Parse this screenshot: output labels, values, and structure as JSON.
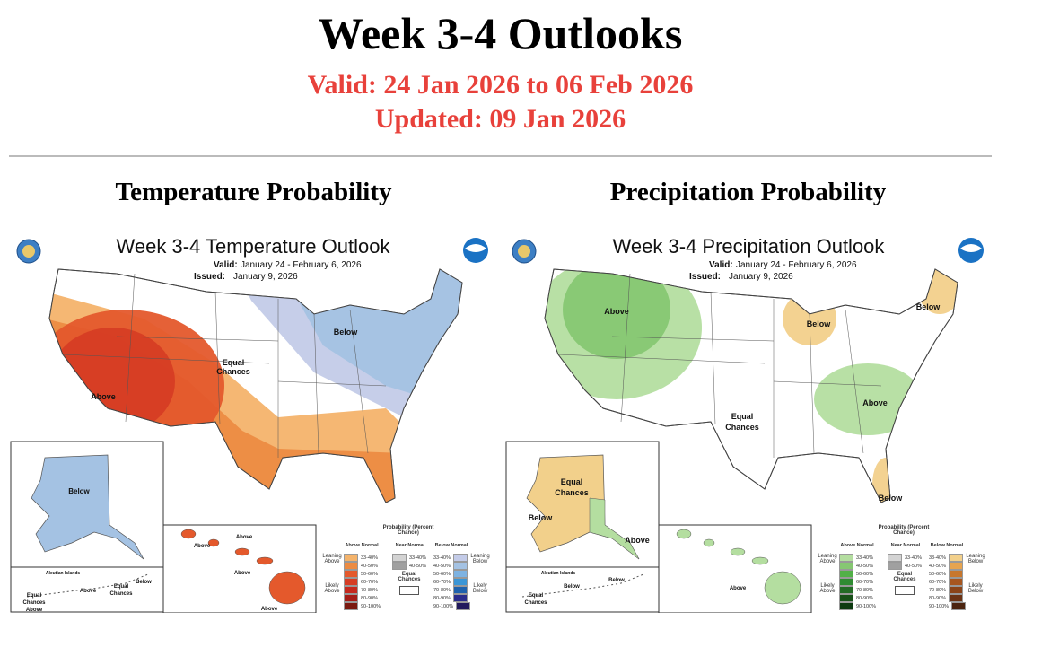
{
  "page": {
    "title": "Week 3-4 Outlooks",
    "valid": "Valid: 24 Jan 2026 to 06 Feb 2026",
    "updated": "Updated: 09 Jan 2026"
  },
  "temperature": {
    "heading": "Temperature Probability",
    "map_title": "Week 3-4 Temperature Outlook",
    "valid_label": "Valid:",
    "valid_value": "January 24 - February 6, 2026",
    "issued_label": "Issued:",
    "issued_value": "January 9, 2026",
    "labels": {
      "above": "Above",
      "below": "Below",
      "equal1": "Equal",
      "equal2": "Chances",
      "ak_below": "Below",
      "aleutian": "Aleutian Islands",
      "al_equal1": "Equal",
      "al_equal2": "Chances",
      "al_above": "Above",
      "al_above2": "Above",
      "al_equal3": "Equal",
      "al_equal4": "Chances",
      "al_below": "Below",
      "hi_above1": "Above",
      "hi_above2": "Above",
      "hi_above3": "Above",
      "hi_above4": "Above"
    },
    "legend": {
      "title": "Probability (Percent Chance)",
      "col1": "Above Normal",
      "col2": "Near Normal",
      "col3": "Below Normal",
      "leaning_left": "Leaning Above",
      "likely_left": "Likely Above",
      "leaning_right": "Leaning Below",
      "likely_right": "Likely Below",
      "equal": "Equal Chances",
      "ranges": [
        "33-40%",
        "40-50%",
        "50-60%",
        "60-70%",
        "70-80%",
        "80-90%",
        "90-100%"
      ],
      "near_ranges": [
        "33-40%",
        "40-50%"
      ],
      "col1_colors": [
        "#f4b36b",
        "#ec8b42",
        "#e4592c",
        "#d63d24",
        "#c5291e",
        "#a51d17",
        "#7a1a10"
      ],
      "near_colors": [
        "#d3d3d3",
        "#a0a0a0"
      ],
      "col3_colors": [
        "#c3cbe8",
        "#a4c2e3",
        "#7eb3e2",
        "#3b96d6",
        "#1f62ad",
        "#2a2d8c",
        "#221a5c"
      ]
    }
  },
  "precipitation": {
    "heading": "Precipitation Probability",
    "map_title": "Week 3-4 Precipitation Outlook",
    "valid_label": "Valid:",
    "valid_value": "January 24 - February 6, 2026",
    "issued_label": "Issued:",
    "issued_value": "January 9, 2026",
    "labels": {
      "above": "Above",
      "below": "Below",
      "equal1": "Equal",
      "equal2": "Chances",
      "above_se": "Above",
      "below_ne": "Below",
      "below_fl": "Below",
      "ak_equal1": "Equal",
      "ak_equal2": "Chances",
      "ak_below": "Below",
      "ak_above": "Above",
      "aleutian": "Aleutian Islands",
      "al_below": "Below",
      "al_below2": "Below",
      "al_equal1": "Equal",
      "al_equal2": "Chances",
      "hi_above": "Above"
    },
    "legend": {
      "title": "Probability (Percent Chance)",
      "col1": "Above Normal",
      "col2": "Near Normal",
      "col3": "Below Normal",
      "leaning_left": "Leaning Above",
      "likely_left": "Likely Above",
      "leaning_right": "Leaning Below",
      "likely_right": "Likely Below",
      "equal": "Equal Chances",
      "ranges": [
        "33-40%",
        "40-50%",
        "50-60%",
        "60-70%",
        "70-80%",
        "80-90%",
        "90-100%"
      ],
      "near_ranges": [
        "33-40%",
        "40-50%"
      ],
      "col1_colors": [
        "#b4dea0",
        "#86c772",
        "#52b048",
        "#2f8b32",
        "#236b26",
        "#175018",
        "#0d3a10"
      ],
      "near_colors": [
        "#d3d3d3",
        "#a0a0a0"
      ],
      "col3_colors": [
        "#f2d08b",
        "#e6a450",
        "#c7772d",
        "#a7561f",
        "#8b4418",
        "#6c3314",
        "#4b2410"
      ]
    }
  }
}
